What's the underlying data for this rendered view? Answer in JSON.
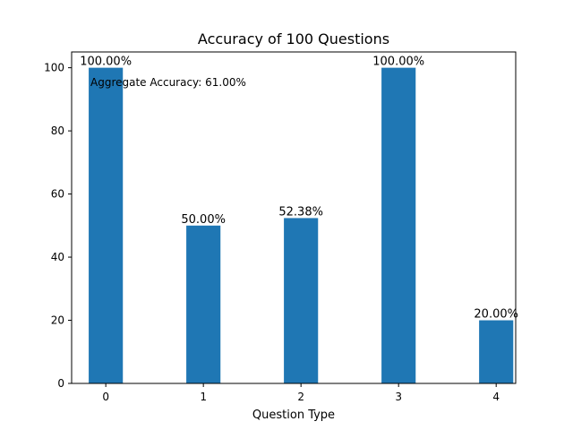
{
  "chart_data": {
    "type": "bar",
    "title": "Accuracy of 100 Questions",
    "xlabel": "Question Type",
    "ylabel": "",
    "categories": [
      "0",
      "1",
      "2",
      "3",
      "4"
    ],
    "values": [
      100.0,
      50.0,
      52.38,
      100.0,
      20.0
    ],
    "data_labels": [
      "100.00%",
      "50.00%",
      "52.38%",
      "100.00%",
      "20.00%"
    ],
    "yticks": [
      0,
      20,
      40,
      60,
      80,
      100
    ],
    "ylim": [
      0,
      100
    ],
    "xlim": [
      -0.35,
      4.2
    ],
    "bar_color": "#1f77b4",
    "annotation": "Aggregate Accuracy: 61.00%",
    "grid": false,
    "legend": "none"
  }
}
